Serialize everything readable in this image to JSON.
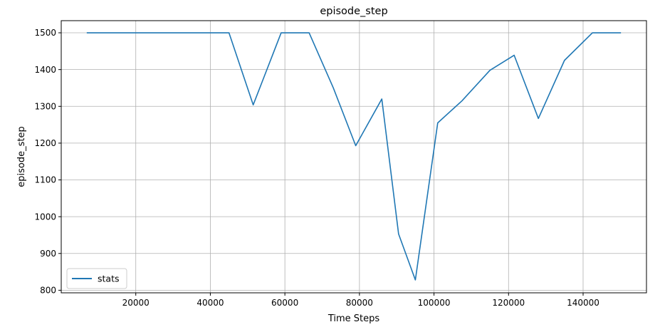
{
  "chart_data": {
    "type": "line",
    "title": "episode_step",
    "xlabel": "Time Steps",
    "ylabel": "episode_step",
    "xlim": [
      0,
      157000
    ],
    "ylim": [
      793,
      1533
    ],
    "x_ticks": [
      20000,
      40000,
      60000,
      80000,
      100000,
      120000,
      140000
    ],
    "y_ticks": [
      800,
      900,
      1000,
      1100,
      1200,
      1300,
      1400,
      1500
    ],
    "grid": true,
    "legend_position": "lower-left",
    "series": [
      {
        "name": "stats",
        "color": "#1f77b4",
        "x": [
          7000,
          14000,
          20000,
          26000,
          32000,
          39000,
          45000,
          51500,
          59000,
          66500,
          73000,
          79000,
          86000,
          90500,
          95000,
          101000,
          107500,
          115000,
          121500,
          128000,
          135000,
          142500,
          150000
        ],
        "y": [
          1500,
          1500,
          1500,
          1500,
          1500,
          1500,
          1500,
          1304,
          1500,
          1500,
          1350,
          1193,
          1320,
          953,
          828,
          1255,
          1315,
          1398,
          1439,
          1267,
          1425,
          1500,
          1500
        ]
      }
    ]
  }
}
